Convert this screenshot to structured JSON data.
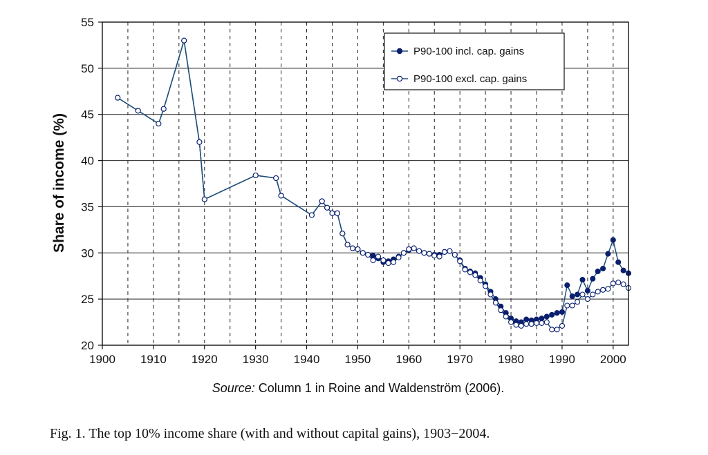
{
  "chart_data": {
    "type": "line",
    "ylabel": "Share of income (%)",
    "xlabel": "",
    "xlim": [
      1900,
      2003
    ],
    "ylim": [
      20,
      55
    ],
    "xticks": [
      "1900",
      "1910",
      "1920",
      "1930",
      "1940",
      "1950",
      "1960",
      "1970",
      "1980",
      "1990",
      "2000"
    ],
    "yticks": [
      "20",
      "25",
      "30",
      "35",
      "40",
      "45",
      "50",
      "55"
    ],
    "grid": "horizontal solid at y ticks; vertical dashed every 5 years",
    "legend_position": "top-right",
    "colors": {
      "line": "#1f4f7a",
      "filled_marker": "#0a1f6e",
      "hollow_marker_stroke": "#0a1f6e"
    },
    "series": [
      {
        "name": "P90-100 incl. cap. gains",
        "marker": "filled",
        "points": [
          [
            1903,
            46.8
          ],
          [
            1907,
            45.4
          ],
          [
            1911,
            44.0
          ],
          [
            1912,
            45.6
          ],
          [
            1916,
            53.0
          ],
          [
            1919,
            42.0
          ],
          [
            1920,
            35.8
          ],
          [
            1930,
            38.4
          ],
          [
            1934,
            38.1
          ],
          [
            1935,
            36.2
          ],
          [
            1941,
            34.1
          ],
          [
            1943,
            35.6
          ],
          [
            1944,
            34.9
          ],
          [
            1945,
            34.3
          ],
          [
            1946,
            34.3
          ],
          [
            1947,
            32.1
          ],
          [
            1948,
            30.9
          ],
          [
            1949,
            30.5
          ],
          [
            1950,
            30.4
          ],
          [
            1951,
            30.0
          ],
          [
            1952,
            29.8
          ],
          [
            1953,
            29.7
          ],
          [
            1954,
            29.4
          ],
          [
            1955,
            29.0
          ],
          [
            1956,
            29.1
          ],
          [
            1957,
            29.3
          ],
          [
            1958,
            29.6
          ],
          [
            1959,
            30.0
          ],
          [
            1960,
            30.3
          ],
          [
            1961,
            30.5
          ],
          [
            1962,
            30.2
          ],
          [
            1963,
            30.0
          ],
          [
            1964,
            29.9
          ],
          [
            1965,
            29.8
          ],
          [
            1966,
            29.8
          ],
          [
            1967,
            30.1
          ],
          [
            1968,
            30.2
          ],
          [
            1969,
            29.8
          ],
          [
            1970,
            29.2
          ],
          [
            1971,
            28.3
          ],
          [
            1972,
            28.0
          ],
          [
            1973,
            27.8
          ],
          [
            1974,
            27.3
          ],
          [
            1975,
            26.6
          ],
          [
            1976,
            25.8
          ],
          [
            1977,
            25.0
          ],
          [
            1978,
            24.2
          ],
          [
            1979,
            23.5
          ],
          [
            1980,
            22.9
          ],
          [
            1981,
            22.6
          ],
          [
            1982,
            22.5
          ],
          [
            1983,
            22.8
          ],
          [
            1984,
            22.7
          ],
          [
            1985,
            22.8
          ],
          [
            1986,
            22.9
          ],
          [
            1987,
            23.1
          ],
          [
            1988,
            23.3
          ],
          [
            1989,
            23.5
          ],
          [
            1990,
            23.6
          ],
          [
            1991,
            26.5
          ],
          [
            1992,
            25.3
          ],
          [
            1993,
            25.5
          ],
          [
            1994,
            27.1
          ],
          [
            1995,
            25.9
          ],
          [
            1996,
            27.2
          ],
          [
            1997,
            28.0
          ],
          [
            1998,
            28.3
          ],
          [
            1999,
            29.9
          ],
          [
            2000,
            31.4
          ],
          [
            2001,
            29.0
          ],
          [
            2002,
            28.1
          ],
          [
            2003,
            27.8
          ]
        ]
      },
      {
        "name": "P90-100 excl. cap. gains",
        "marker": "hollow",
        "points": [
          [
            1903,
            46.8
          ],
          [
            1907,
            45.4
          ],
          [
            1911,
            44.0
          ],
          [
            1912,
            45.6
          ],
          [
            1916,
            53.0
          ],
          [
            1919,
            42.0
          ],
          [
            1920,
            35.8
          ],
          [
            1930,
            38.4
          ],
          [
            1934,
            38.1
          ],
          [
            1935,
            36.2
          ],
          [
            1941,
            34.1
          ],
          [
            1943,
            35.6
          ],
          [
            1944,
            34.9
          ],
          [
            1945,
            34.3
          ],
          [
            1946,
            34.3
          ],
          [
            1947,
            32.1
          ],
          [
            1948,
            30.9
          ],
          [
            1949,
            30.5
          ],
          [
            1950,
            30.4
          ],
          [
            1951,
            30.0
          ],
          [
            1952,
            29.8
          ],
          [
            1953,
            29.2
          ],
          [
            1954,
            29.6
          ],
          [
            1955,
            29.2
          ],
          [
            1956,
            28.9
          ],
          [
            1957,
            29.0
          ],
          [
            1958,
            29.5
          ],
          [
            1959,
            30.0
          ],
          [
            1960,
            30.4
          ],
          [
            1961,
            30.5
          ],
          [
            1962,
            30.2
          ],
          [
            1963,
            30.0
          ],
          [
            1964,
            29.9
          ],
          [
            1965,
            29.7
          ],
          [
            1966,
            29.6
          ],
          [
            1967,
            30.1
          ],
          [
            1968,
            30.2
          ],
          [
            1969,
            29.8
          ],
          [
            1970,
            29.1
          ],
          [
            1971,
            28.2
          ],
          [
            1972,
            27.9
          ],
          [
            1973,
            27.6
          ],
          [
            1974,
            27.0
          ],
          [
            1975,
            26.4
          ],
          [
            1976,
            25.5
          ],
          [
            1977,
            24.6
          ],
          [
            1978,
            23.8
          ],
          [
            1979,
            23.1
          ],
          [
            1980,
            22.5
          ],
          [
            1981,
            22.2
          ],
          [
            1982,
            22.1
          ],
          [
            1983,
            22.3
          ],
          [
            1984,
            22.3
          ],
          [
            1985,
            22.4
          ],
          [
            1986,
            22.4
          ],
          [
            1987,
            22.5
          ],
          [
            1988,
            21.7
          ],
          [
            1989,
            21.7
          ],
          [
            1990,
            22.1
          ],
          [
            1991,
            24.3
          ],
          [
            1992,
            24.3
          ],
          [
            1993,
            24.7
          ],
          [
            1994,
            25.5
          ],
          [
            1995,
            25.0
          ],
          [
            1996,
            25.5
          ],
          [
            1997,
            25.8
          ],
          [
            1998,
            26.0
          ],
          [
            1999,
            26.1
          ],
          [
            2000,
            26.7
          ],
          [
            2001,
            26.8
          ],
          [
            2002,
            26.6
          ],
          [
            2003,
            26.2
          ]
        ]
      }
    ]
  },
  "source": {
    "italic": "Source:",
    "rest": " Column 1 in Roine and Waldenström (2006)."
  },
  "caption": "Fig. 1. The top 10% income share (with and without capital gains), 1903−2004."
}
